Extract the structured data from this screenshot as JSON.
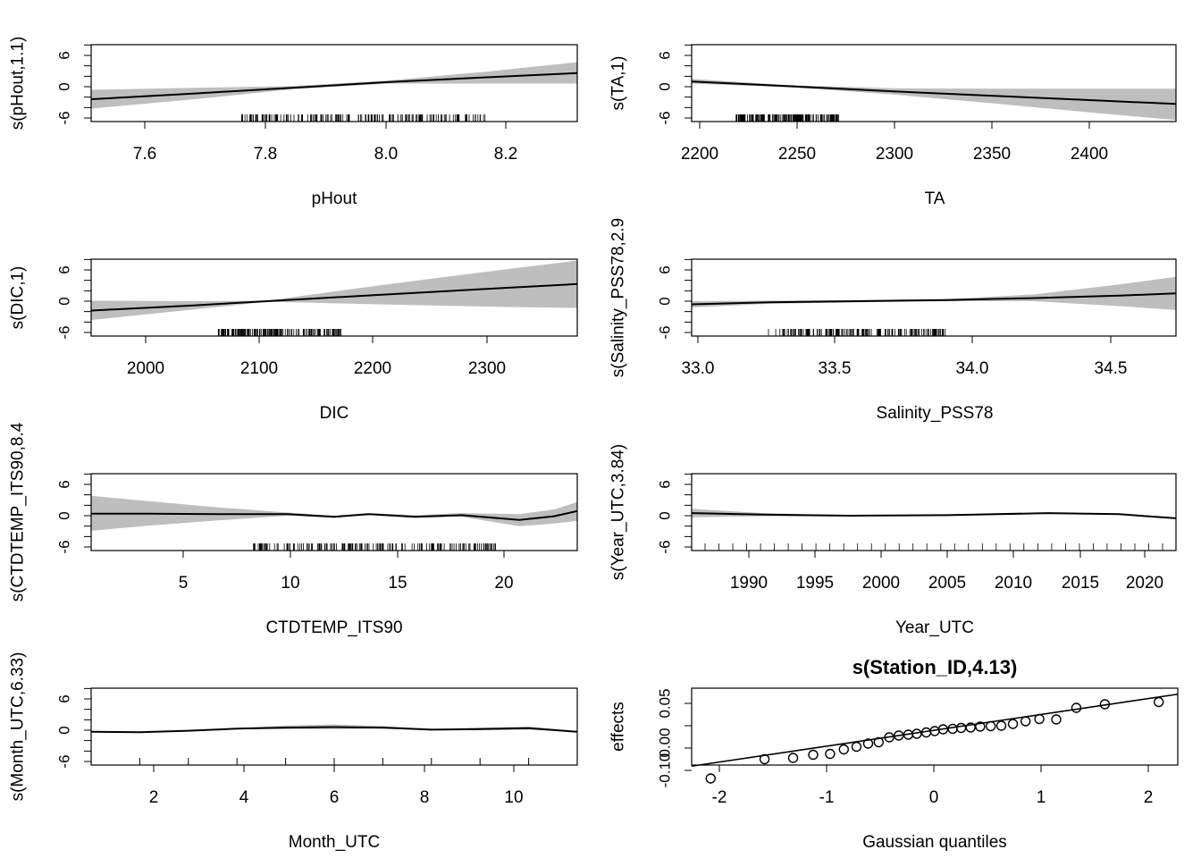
{
  "chart_data": [
    {
      "type": "line",
      "xlabel": "pHout",
      "ylabel": "s(pHout,1.1)",
      "xlim": [
        7.54,
        8.29
      ],
      "ylim": [
        -7,
        9
      ],
      "yticks": [
        "6",
        "0",
        "-6"
      ],
      "xticks": [
        "7.6",
        "7.8",
        "8.0",
        "8.2"
      ],
      "grid": false,
      "x": [
        7.54,
        7.7,
        7.85,
        8.0,
        8.15,
        8.29
      ],
      "fit": [
        -2.4,
        -1.3,
        -0.2,
        0.9,
        1.8,
        2.6
      ],
      "lower": [
        -4.2,
        -2.4,
        -0.5,
        0.6,
        0.6,
        0.6
      ],
      "upper": [
        -0.6,
        -0.2,
        0.1,
        1.2,
        2.9,
        4.7
      ],
      "rug_range": [
        7.77,
        8.15
      ]
    },
    {
      "type": "line",
      "xlabel": "TA",
      "ylabel": "s(TA,1)",
      "xlim": [
        2204,
        2434
      ],
      "ylim": [
        -7,
        9
      ],
      "yticks": [
        "6",
        "0",
        "-6"
      ],
      "xticks": [
        "2200",
        "2250",
        "2300",
        "2350",
        "2400"
      ],
      "grid": false,
      "x": [
        2204,
        2250,
        2300,
        2350,
        2400,
        2434
      ],
      "fit": [
        1.0,
        0.1,
        -0.9,
        -1.8,
        -2.7,
        -3.3
      ],
      "lower": [
        0.6,
        -0.1,
        -1.5,
        -3.3,
        -5.2,
        -6.4
      ],
      "upper": [
        1.5,
        0.3,
        -0.3,
        -0.4,
        -0.4,
        -0.4
      ],
      "rug_range": [
        2225,
        2275
      ]
    },
    {
      "type": "line",
      "xlabel": "DIC",
      "ylabel": "s(DIC,1)",
      "xlim": [
        1967,
        2362
      ],
      "ylim": [
        -7,
        9
      ],
      "yticks": [
        "6",
        "0",
        "-6"
      ],
      "xticks": [
        "2000",
        "2100",
        "2200",
        "2300"
      ],
      "grid": false,
      "x": [
        1967,
        2050,
        2110,
        2200,
        2300,
        2362
      ],
      "fit": [
        -1.8,
        -0.8,
        0.0,
        1.2,
        2.5,
        3.3
      ],
      "lower": [
        -3.6,
        -1.6,
        -0.1,
        -0.6,
        -1.1,
        -1.3
      ],
      "upper": [
        0.1,
        0.0,
        0.1,
        3.0,
        6.0,
        7.8
      ],
      "rug_range": [
        2070,
        2170
      ]
    },
    {
      "type": "line",
      "xlabel": "Salinity_PSS78",
      "ylabel": "s(Salinity_PSS78,2.9",
      "xlim": [
        33.04,
        34.68
      ],
      "ylim": [
        -7,
        9
      ],
      "yticks": [
        "6",
        "0",
        "-6"
      ],
      "xticks": [
        "33.0",
        "33.5",
        "34.0",
        "34.5"
      ],
      "grid": false,
      "x": [
        33.04,
        33.3,
        33.6,
        33.9,
        34.2,
        34.5,
        34.68
      ],
      "fit": [
        -0.6,
        -0.2,
        0.0,
        0.2,
        0.6,
        1.1,
        1.5
      ],
      "lower": [
        -1.2,
        -0.5,
        -0.2,
        0.0,
        0.0,
        -1.0,
        -1.7
      ],
      "upper": [
        0.0,
        0.1,
        0.2,
        0.4,
        1.3,
        3.3,
        4.7
      ],
      "rug_range": [
        33.3,
        33.9
      ]
    },
    {
      "type": "line",
      "xlabel": "CTDTEMP_ITS90",
      "ylabel": "s(CTDTEMP_ITS90,8.4",
      "xlim": [
        1.5,
        22.5
      ],
      "ylim": [
        -7,
        9
      ],
      "yticks": [
        "6",
        "0",
        "-6"
      ],
      "xticks": [
        "5",
        "10",
        "15",
        "20"
      ],
      "grid": false,
      "x": [
        1.5,
        4,
        7,
        10,
        12,
        13.5,
        15.5,
        17.5,
        20,
        21.5,
        22.5
      ],
      "fit": [
        0.4,
        0.4,
        0.3,
        0.3,
        -0.2,
        0.3,
        -0.2,
        0.1,
        -0.8,
        -0.1,
        0.9
      ],
      "lower": [
        -2.9,
        -1.9,
        -0.9,
        0.0,
        -0.4,
        0.1,
        -0.4,
        -0.2,
        -2.0,
        -1.5,
        -1.0
      ],
      "upper": [
        3.8,
        2.8,
        1.6,
        0.6,
        0.0,
        0.5,
        0.1,
        0.5,
        0.3,
        1.2,
        2.6
      ],
      "rug_range": [
        8.5,
        19
      ]
    },
    {
      "type": "line",
      "xlabel": "Year_UTC",
      "ylabel": "s(Year_UTC,3.84)",
      "xlim": [
        1987,
        2021
      ],
      "ylim": [
        -7,
        9
      ],
      "yticks": [
        "6",
        "0",
        "-6"
      ],
      "xticks": [
        "1990",
        "1995",
        "2000",
        "2005",
        "2010",
        "2015",
        "2020"
      ],
      "grid": false,
      "x": [
        1987,
        1992,
        1998,
        2005,
        2012,
        2017,
        2021
      ],
      "fit": [
        0.5,
        0.2,
        0.0,
        0.1,
        0.5,
        0.3,
        -0.5
      ],
      "lower": [
        -0.3,
        -0.1,
        -0.1,
        0.0,
        0.4,
        0.2,
        -0.6
      ],
      "upper": [
        1.3,
        0.5,
        0.1,
        0.2,
        0.6,
        0.4,
        -0.4
      ],
      "rug_range": [
        1987,
        2021
      ]
    },
    {
      "type": "line",
      "xlabel": "Month_UTC",
      "ylabel": "s(Month_UTC,6.33)",
      "xlim": [
        1,
        11
      ],
      "ylim": [
        -7,
        9
      ],
      "yticks": [
        "6",
        "0",
        "-6"
      ],
      "xticks": [
        "2",
        "4",
        "6",
        "8",
        "10"
      ],
      "grid": false,
      "x": [
        1,
        2,
        3,
        4,
        5,
        6,
        7,
        8,
        9,
        10,
        11
      ],
      "fit": [
        -0.3,
        -0.4,
        -0.1,
        0.3,
        0.5,
        0.6,
        0.5,
        0.1,
        0.2,
        0.4,
        -0.3
      ],
      "lower": [
        -0.4,
        -0.5,
        -0.2,
        0.2,
        0.2,
        0.2,
        0.3,
        0.0,
        0.0,
        0.1,
        -0.4
      ],
      "upper": [
        -0.2,
        -0.3,
        0.0,
        0.4,
        0.9,
        1.1,
        0.8,
        0.2,
        0.5,
        0.7,
        -0.2
      ],
      "rug_months": [
        1,
        2,
        3,
        4,
        5,
        6,
        7,
        8,
        9,
        10,
        11
      ]
    },
    {
      "type": "scatter",
      "title": "s(Station_ID,4.13)",
      "xlabel": "Gaussian quantiles",
      "ylabel": "effects",
      "xlim": [
        -2.3,
        2.3
      ],
      "ylim": [
        -0.12,
        0.08
      ],
      "yticks": [
        "0.05",
        "0.00",
        "-0.10"
      ],
      "xticks": [
        "-2",
        "-1",
        "0",
        "1",
        "2"
      ],
      "grid": false,
      "x": [
        -2.12,
        -1.61,
        -1.34,
        -1.15,
        -0.99,
        -0.86,
        -0.74,
        -0.63,
        -0.53,
        -0.43,
        -0.34,
        -0.25,
        -0.17,
        -0.08,
        0.0,
        0.08,
        0.17,
        0.25,
        0.34,
        0.43,
        0.53,
        0.63,
        0.74,
        0.86,
        0.99,
        1.15,
        1.34,
        1.61,
        2.12
      ],
      "y": [
        -0.118,
        -0.075,
        -0.072,
        -0.065,
        -0.063,
        -0.053,
        -0.047,
        -0.04,
        -0.037,
        -0.026,
        -0.022,
        -0.02,
        -0.018,
        -0.015,
        -0.012,
        -0.008,
        -0.007,
        -0.005,
        -0.004,
        -0.002,
        -0.001,
        0.0,
        0.004,
        0.01,
        0.015,
        0.014,
        0.04,
        0.048,
        0.053
      ],
      "reference_line": {
        "intercept": -0.01,
        "slope": 0.035
      }
    }
  ]
}
